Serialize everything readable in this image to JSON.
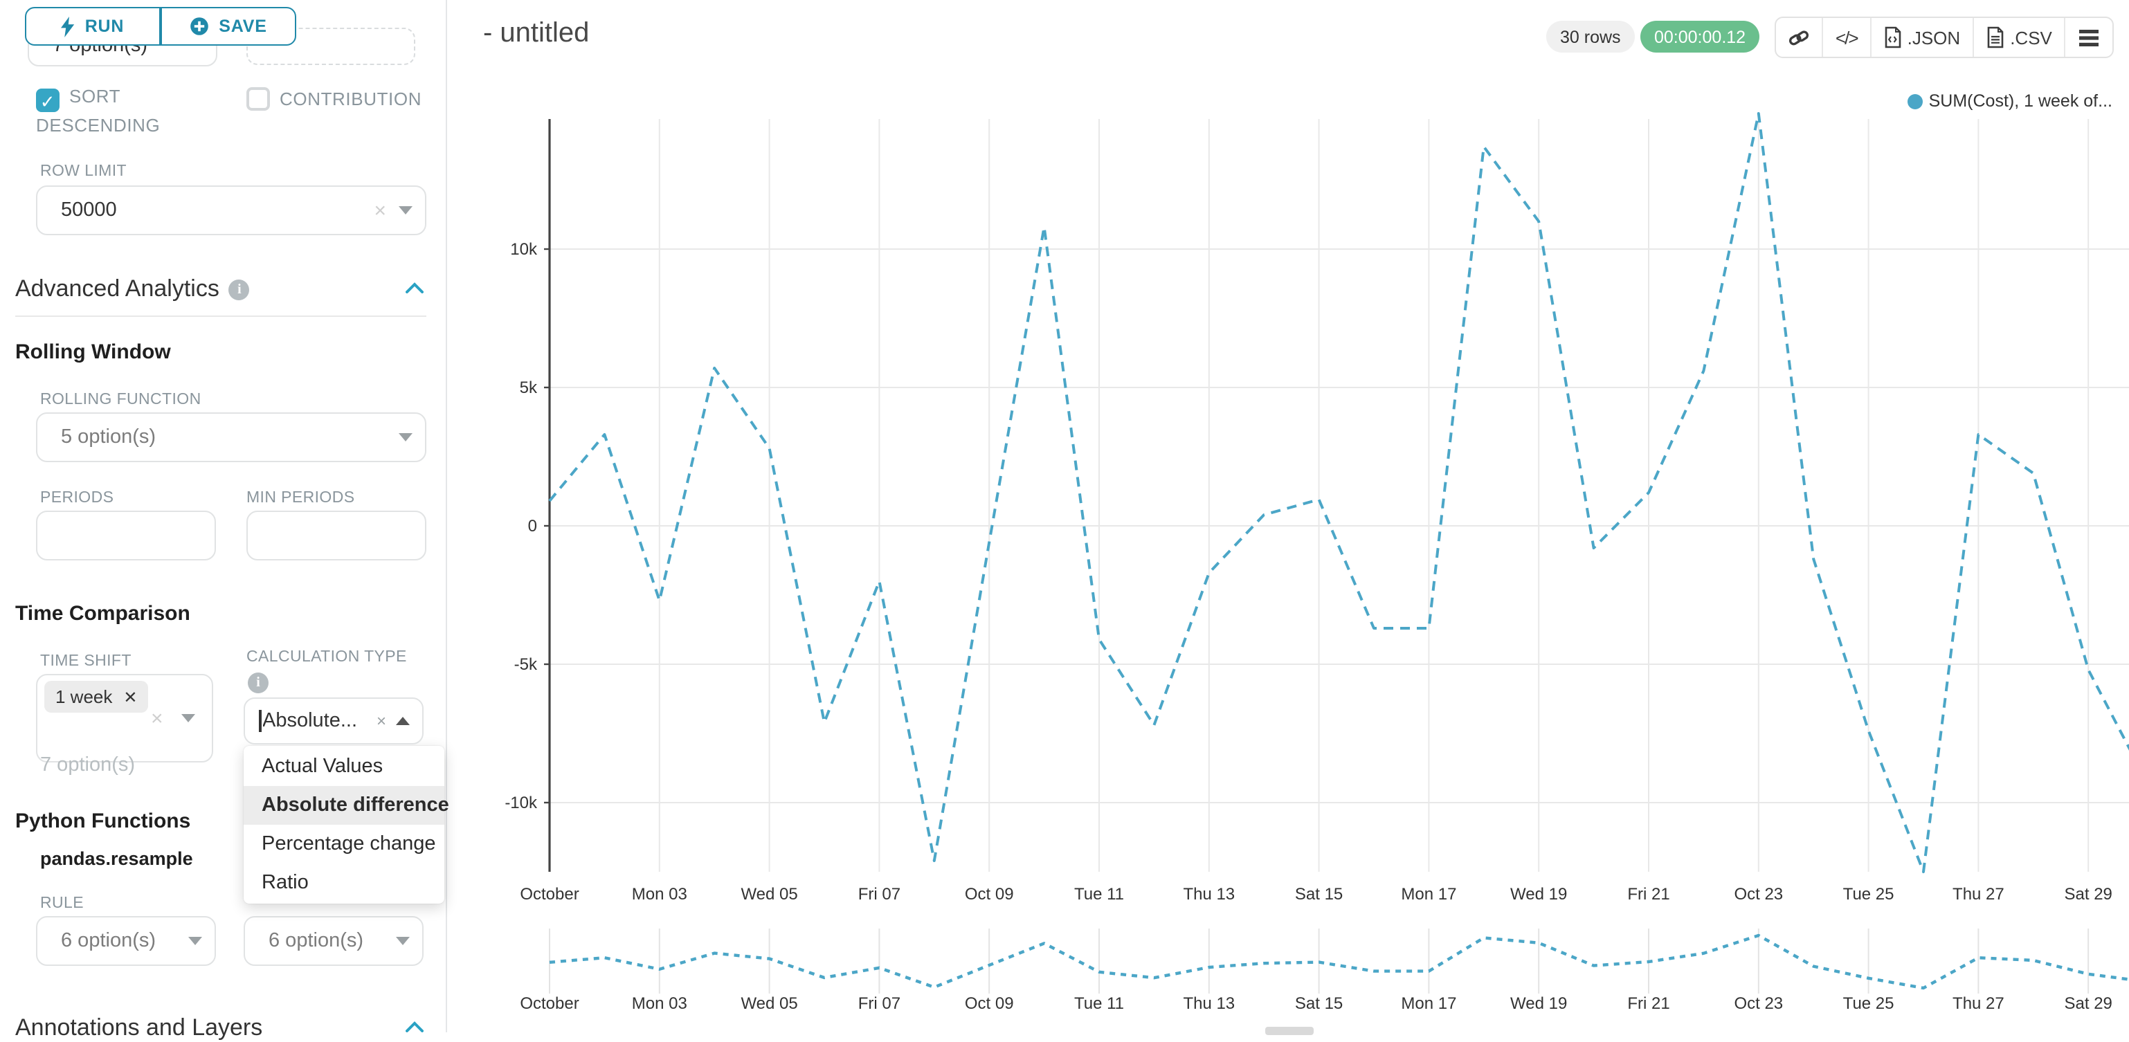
{
  "colors": {
    "primary_teal": "#2089a9",
    "checkbox_teal": "#36a6c5",
    "line_blue": "#4ba6c7",
    "success_green": "#6abf8d",
    "badge_gray": "#f0f0f0",
    "grid_gray": "#e8e8e8",
    "axis_dark": "#444444"
  },
  "glyphs": {
    "check": "✓",
    "clear": "×",
    "tag_remove": "✕",
    "info": "i",
    "code": "</>"
  },
  "sidebar": {
    "run_button": "RUN",
    "save_button": "SAVE",
    "top_partial_value": "7 option(s)",
    "sort_descending_label": "SORT DESCENDING",
    "contribution_label": "CONTRIBUTION",
    "row_limit_label": "ROW LIMIT",
    "row_limit_value": "50000",
    "advanced_analytics_title": "Advanced Analytics",
    "rolling_window_title": "Rolling Window",
    "rolling_function_label": "ROLLING FUNCTION",
    "rolling_function_placeholder": "5 option(s)",
    "periods_label": "PERIODS",
    "min_periods_label": "MIN PERIODS",
    "time_comparison_title": "Time Comparison",
    "time_shift_label": "TIME SHIFT",
    "time_shift_tag": "1 week",
    "time_shift_helper": "7 option(s)",
    "calculation_type_label": "CALCULATION TYPE",
    "calculation_type_value": "Absolute...",
    "calculation_type_options": [
      "Actual Values",
      "Absolute difference",
      "Percentage change",
      "Ratio"
    ],
    "calculation_type_selected": "Absolute difference",
    "python_functions_title": "Python Functions",
    "python_functions_subtitle": "pandas.resample",
    "rule_label": "RULE",
    "rule_placeholder": "6 option(s)",
    "rule_method_placeholder": "6 option(s)",
    "annotations_title": "Annotations and Layers"
  },
  "header": {
    "title": "- untitled",
    "rows_badge": "30 rows",
    "timer_badge": "00:00:00.12",
    "export_json_label": ".JSON",
    "export_csv_label": ".CSV"
  },
  "chart_data": {
    "type": "line",
    "legend": [
      {
        "label": "SUM(Cost), 1 week of...",
        "color": "#4ba6c7"
      }
    ],
    "legend_position": "top-right",
    "grid": true,
    "series": [
      {
        "name": "SUM(Cost), 1 week of...",
        "color": "#4ba6c7",
        "dashed": true,
        "values": [
          900,
          3300,
          -2700,
          5700,
          2800,
          -7100,
          -2000,
          -12100,
          -600,
          10800,
          -4100,
          -7200,
          -1700,
          400,
          950,
          -3700,
          -3700,
          13700,
          11000,
          -800,
          1200,
          5600,
          14900,
          -1200,
          -7400,
          -12500,
          3300,
          1900,
          -5200,
          -9000
        ]
      }
    ],
    "n_points": 30,
    "x_tick_positions": [
      0,
      2,
      4,
      6,
      8,
      10,
      12,
      14,
      16,
      18,
      20,
      22,
      24,
      26,
      28
    ],
    "x_tick_labels": [
      "October",
      "Mon 03",
      "Wed 05",
      "Fri 07",
      "Oct 09",
      "Tue 11",
      "Thu 13",
      "Sat 15",
      "Mon 17",
      "Wed 19",
      "Fri 21",
      "Oct 23",
      "Tue 25",
      "Thu 27",
      "Sat 29"
    ],
    "yticks": [
      {
        "value": 10000,
        "label": "10k"
      },
      {
        "value": 5000,
        "label": "5k"
      },
      {
        "value": 0,
        "label": "0"
      },
      {
        "value": -5000,
        "label": "-5k"
      },
      {
        "value": -10000,
        "label": "-10k"
      }
    ],
    "ylim": [
      -12700,
      15200
    ],
    "has_preview_strip": true
  }
}
